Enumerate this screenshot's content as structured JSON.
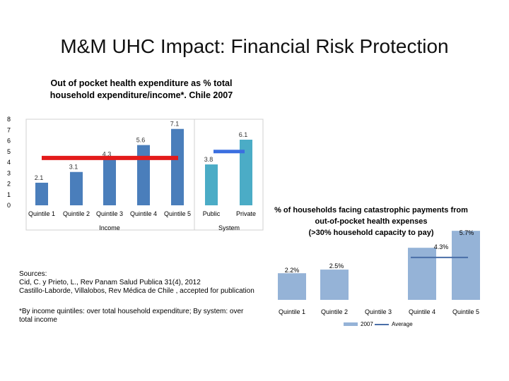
{
  "slide": {
    "title": "M&M UHC Impact: Financial Risk Protection",
    "sources_lines": [
      "Sources:",
      "Cid, C. y Prieto, L., Rev Panam Salud Publica 31(4), 2012",
      "Castillo-Laborde, Villalobos, Rev Médica de Chile , accepted for publication"
    ],
    "note_lines": [
      "*By income quintiles: over total household expenditure; By system: over",
      "total income"
    ]
  },
  "chart_data": [
    {
      "type": "bar",
      "title_lines": [
        "Out of pocket health expenditure as % total",
        "household expenditure/income*. Chile 2007"
      ],
      "categories": [
        "Quintile 1",
        "Quintile 2",
        "Quintile 3",
        "Quintile 4",
        "Quintile 5",
        "Public",
        "Private"
      ],
      "values": [
        2.1,
        3.1,
        4.3,
        5.6,
        7.1,
        3.8,
        6.1
      ],
      "value_labels": [
        "2.1",
        "3.1",
        "4.3",
        "5.6",
        "7.1",
        "3.8",
        "6.1"
      ],
      "group_labels": [
        {
          "label": "Income",
          "categories": [
            "Quintile 1",
            "Quintile 2",
            "Quintile 3",
            "Quintile 4",
            "Quintile 5"
          ]
        },
        {
          "label": "System",
          "categories": [
            "Public",
            "Private"
          ]
        }
      ],
      "average_lines": [
        {
          "categories": [
            "Quintile 1",
            "Quintile 5"
          ],
          "value": 4.4,
          "color": "#e31b1b"
        },
        {
          "categories": [
            "Private",
            "Private"
          ],
          "value": 5.0,
          "color": "#3b6fe0"
        }
      ],
      "bar_colors": [
        "#4a7ebb",
        "#4a7ebb",
        "#4a7ebb",
        "#4a7ebb",
        "#4a7ebb",
        "#4bacc6",
        "#4bacc6"
      ],
      "ylim": [
        0,
        8
      ],
      "yticks": [
        "0",
        "1",
        "2",
        "3",
        "4",
        "5",
        "6",
        "7",
        "8"
      ],
      "grid": false
    },
    {
      "type": "bar",
      "title_lines": [
        "% of households facing catastrophic payments from",
        "out-of-pocket health expenses",
        "(>30% household capacity to pay)"
      ],
      "categories": [
        "Quintile 1",
        "Quintile 2",
        "Quintile 3",
        "Quintile 4",
        "Quintile 5"
      ],
      "values": [
        2.2,
        2.5,
        null,
        4.3,
        5.7
      ],
      "value_labels": [
        "2.2%",
        "2.5%",
        "",
        "4.3%",
        "5.7%"
      ],
      "average": 3.5,
      "series": [
        {
          "name": "2007",
          "color": "#95b3d7"
        },
        {
          "name": "Average",
          "color": "#4a6fa8"
        }
      ],
      "ylim": [
        0,
        6
      ],
      "legend": "bottom",
      "grid": false
    }
  ]
}
